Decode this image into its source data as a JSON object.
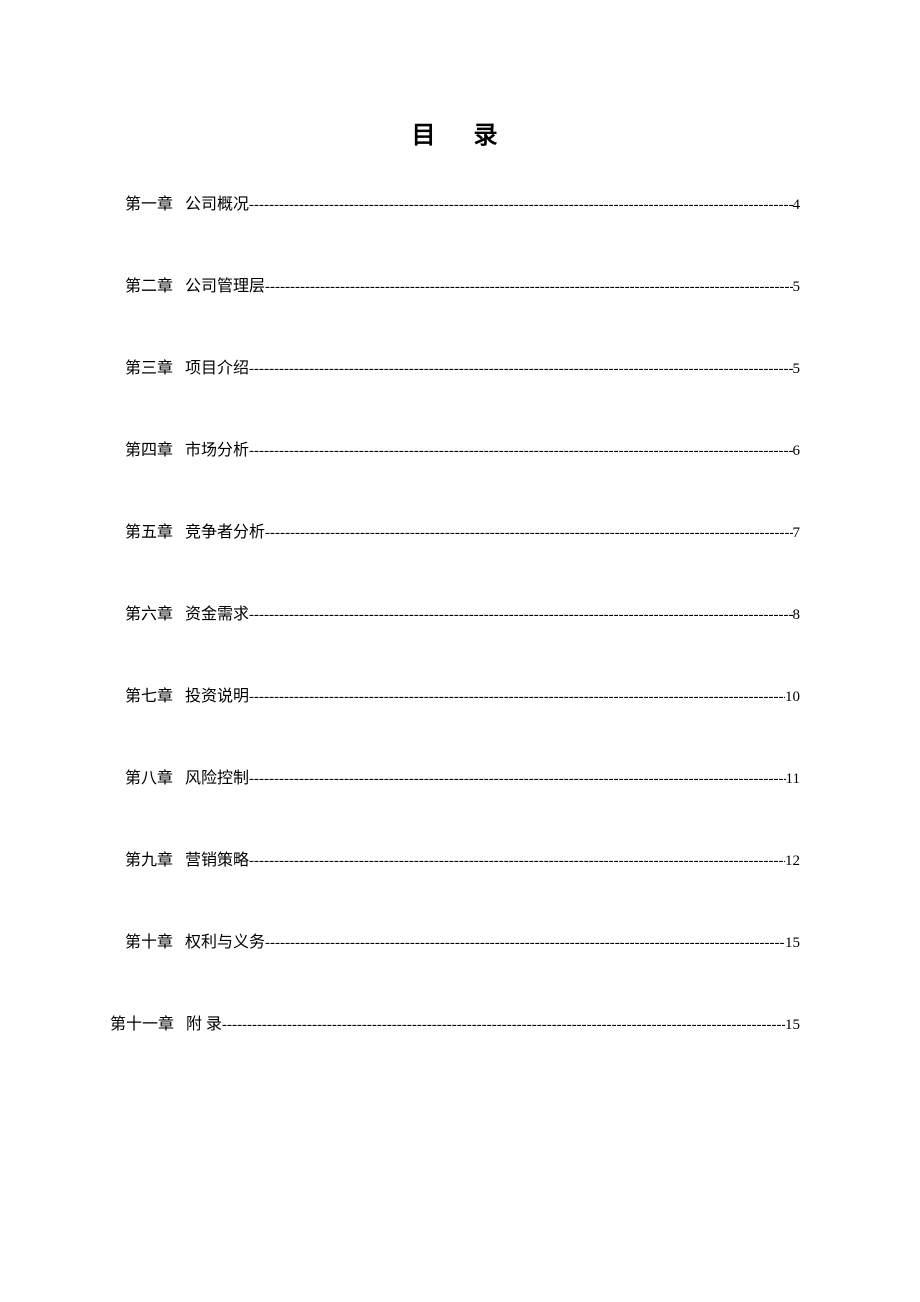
{
  "title": "目 录",
  "leader_char": "-",
  "entries": [
    {
      "chapter": "第一章",
      "name": "公司概况",
      "page": "4"
    },
    {
      "chapter": "第二章",
      "name": "公司管理层",
      "page": "5"
    },
    {
      "chapter": "第三章",
      "name": "项目介绍",
      "page": "5"
    },
    {
      "chapter": "第四章",
      "name": "市场分析",
      "page": "6"
    },
    {
      "chapter": "第五章",
      "name": "竞争者分析",
      "page": "7"
    },
    {
      "chapter": "第六章",
      "name": "资金需求",
      "page": "8"
    },
    {
      "chapter": "第七章",
      "name": "投资说明",
      "page": "10"
    },
    {
      "chapter": "第八章",
      "name": "风险控制",
      "page": "11"
    },
    {
      "chapter": "第九章",
      "name": "营销策略",
      "page": "12"
    },
    {
      "chapter": "第十章",
      "name": "权利与义务",
      "page": "15"
    },
    {
      "chapter": "第十一章",
      "name": "附  录",
      "page": "15"
    }
  ],
  "colors": {
    "background": "#ffffff",
    "text": "#000000"
  },
  "typography": {
    "title_fontsize": 24,
    "entry_fontsize": 16,
    "font_family": "SimSun"
  }
}
